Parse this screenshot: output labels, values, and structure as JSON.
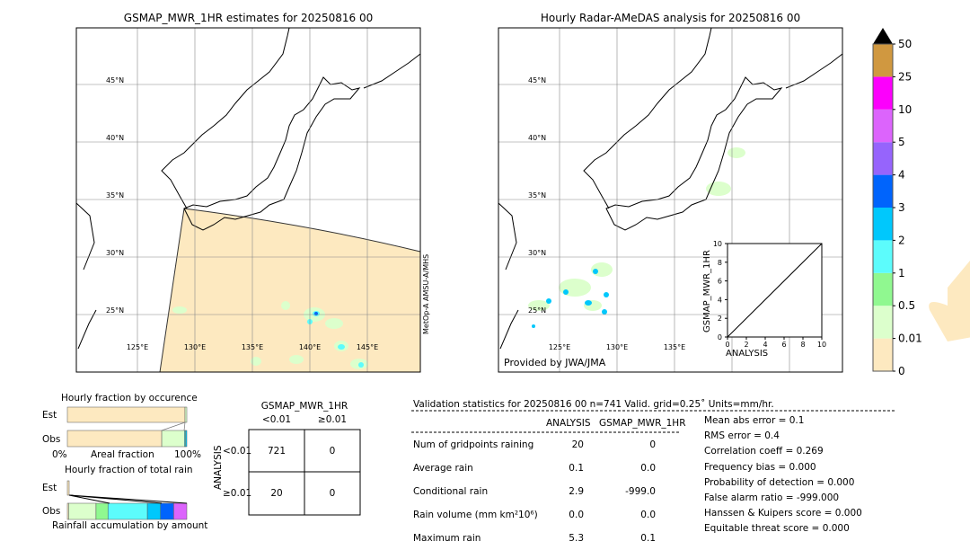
{
  "left_map": {
    "title": "GSMAP_MWR_1HR estimates for 20250816 00",
    "lat_labels": [
      "45°N",
      "40°N",
      "35°N",
      "30°N",
      "25°N"
    ],
    "lon_labels": [
      "125°E",
      "130°E",
      "135°E",
      "140°E",
      "145°E"
    ],
    "satellite_note": "MetOp-A AMSU-A/MHS"
  },
  "right_map": {
    "title": "Hourly Radar-AMeDAS analysis for 20250816 00",
    "lat_labels": [
      "45°N",
      "40°N",
      "35°N",
      "30°N",
      "25°N"
    ],
    "lon_labels": [
      "125°E",
      "130°E",
      "135°E"
    ],
    "credit": "Provided by JWA/JMA"
  },
  "chart_data": [
    {
      "type": "scatter",
      "xlabel": "ANALYSIS",
      "ylabel": "GSMAP_MWR_1HR",
      "xlim": [
        0,
        10
      ],
      "ylim": [
        0,
        10
      ],
      "xticks": [
        "0",
        "2",
        "4",
        "6",
        "8",
        "10"
      ],
      "yticks": [
        "0",
        "2",
        "4",
        "6",
        "8",
        "10"
      ],
      "diagonal": true
    },
    {
      "type": "colorbar",
      "levels": [
        "0",
        "0.01",
        "0.5",
        "1",
        "2",
        "3",
        "4",
        "5",
        "10",
        "25",
        "50"
      ],
      "colors": [
        "#fde9c0",
        "#dcffcc",
        "#90f890",
        "#5cfcfc",
        "#00c8fc",
        "#0064fc",
        "#9664fc",
        "#dc64fc",
        "#fc00fc",
        "#d09840"
      ],
      "extend": "max"
    },
    {
      "type": "bar",
      "title": "Hourly fraction by occurence",
      "categories": [
        "Est",
        "Obs"
      ],
      "xlabel": "Areal fraction",
      "xticks": [
        "0%",
        "100%"
      ],
      "series": [
        {
          "values": [
            0.99,
            0.79
          ]
        },
        {
          "values": [
            0.01,
            0.15
          ]
        },
        {
          "values": [
            0,
            0.02
          ]
        },
        {
          "values": [
            0,
            0.02
          ]
        }
      ]
    },
    {
      "type": "bar",
      "title": "Hourly fraction of total rain",
      "categories": [
        "Est",
        "Obs"
      ],
      "xlabel": "Rainfall accumulation by amount"
    },
    {
      "type": "table",
      "title": "GSMAP_MWR_1HR",
      "col_headers": [
        "<0.01",
        "≥0.01"
      ],
      "row_label": "ANALYSIS",
      "row_headers": [
        "<0.01",
        "≥0.01"
      ],
      "cells": [
        [
          "721",
          "0"
        ],
        [
          "20",
          "0"
        ]
      ]
    }
  ],
  "validation": {
    "header": "Validation statistics for 20250816 00  n=741 Valid. grid=0.25˚ Units=mm/hr.",
    "col_headers": [
      "ANALYSIS",
      "GSMAP_MWR_1HR"
    ],
    "rows": [
      {
        "label": "Num of gridpoints raining",
        "a": "20",
        "b": "0"
      },
      {
        "label": "Average rain",
        "a": "0.1",
        "b": "0.0"
      },
      {
        "label": "Conditional rain",
        "a": "2.9",
        "b": "-999.0"
      },
      {
        "label": "Rain volume (mm km²10⁶)",
        "a": "0.0",
        "b": "0.0"
      },
      {
        "label": "Maximum rain",
        "a": "5.3",
        "b": "0.1"
      }
    ],
    "scores": [
      "Mean abs error =    0.1",
      "RMS error =    0.4",
      "Correlation coeff =  0.269",
      "Frequency bias =  0.000",
      "Probability of detection =  0.000",
      "False alarm ratio = -999.000",
      "Hanssen & Kuipers score =  0.000",
      "Equitable threat score =  0.000"
    ]
  }
}
